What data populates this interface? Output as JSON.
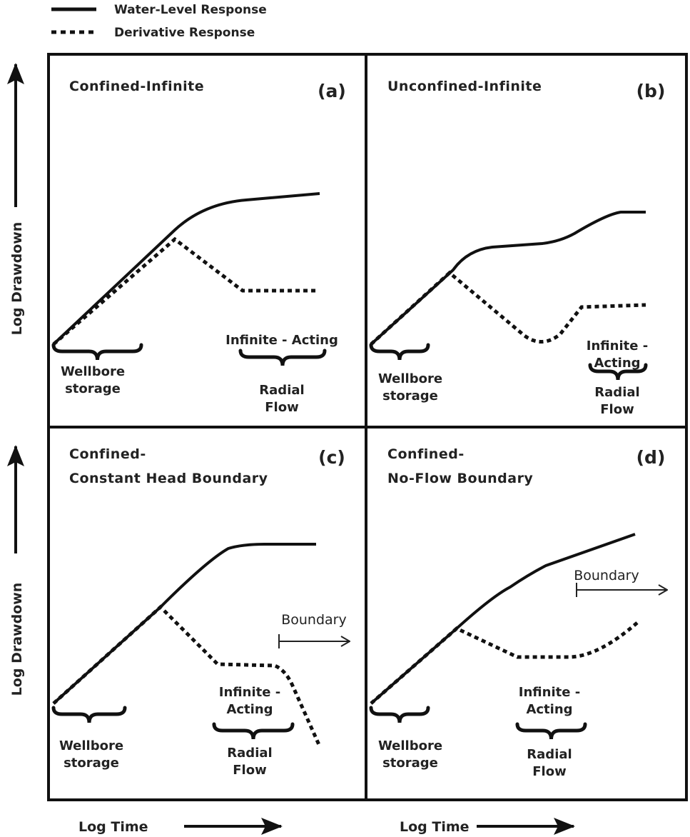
{
  "legend": {
    "solid_label": "Water-Level Response",
    "dotted_label": "Derivative Response"
  },
  "axes": {
    "y_label": "Log Drawdown",
    "x_label": "Log Time"
  },
  "panels": [
    {
      "tag": "(a)",
      "title": [
        "Confined-Infinite"
      ],
      "wellbore": [
        "Wellbore",
        "storage"
      ],
      "radial_top": [
        "Infinite - Acting"
      ],
      "radial_bottom": [
        "Radial",
        "Flow"
      ]
    },
    {
      "tag": "(b)",
      "title": [
        "Unconfined-Infinite"
      ],
      "wellbore": [
        "Wellbore",
        "storage"
      ],
      "radial_top": [
        "Infinite -",
        "Acting"
      ],
      "radial_bottom": [
        "Radial",
        "Flow"
      ]
    },
    {
      "tag": "(c)",
      "title": [
        "Confined-",
        "Constant Head Boundary"
      ],
      "wellbore": [
        "Wellbore",
        "storage"
      ],
      "radial_top": [
        "Infinite -",
        "Acting"
      ],
      "radial_bottom": [
        "Radial",
        "Flow"
      ],
      "boundary": "Boundary"
    },
    {
      "tag": "(d)",
      "title": [
        "Confined-",
        "No-Flow Boundary"
      ],
      "wellbore": [
        "Wellbore",
        "storage"
      ],
      "radial_top": [
        "Infinite -",
        "Acting"
      ],
      "radial_bottom": [
        "Radial",
        "Flow"
      ],
      "boundary": "Boundary"
    }
  ]
}
